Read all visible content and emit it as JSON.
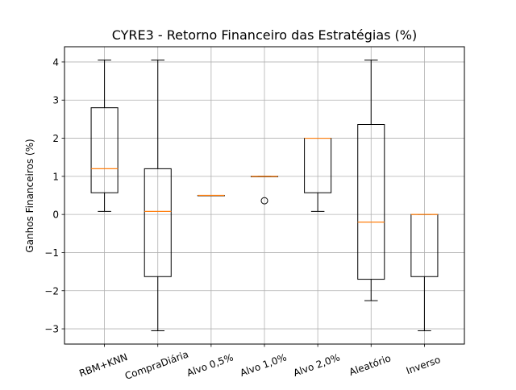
{
  "chart_data": {
    "type": "boxplot",
    "title": "CYRE3 - Retorno Financeiro das Estratégias (%)",
    "xlabel": "",
    "ylabel": "Ganhos Financeiros (%)",
    "ylim": [
      -3.4,
      4.4
    ],
    "yticks": [
      -3,
      -2,
      -1,
      0,
      1,
      2,
      3,
      4
    ],
    "ytick_labels": [
      "−3",
      "−2",
      "−1",
      "0",
      "1",
      "2",
      "3",
      "4"
    ],
    "grid": true,
    "categories": [
      "RBM+KNN",
      "CompraDiária",
      "Alvo 0,5%",
      "Alvo 1,0%",
      "Alvo 2,0%",
      "Aleatório",
      "Inverso"
    ],
    "boxes": [
      {
        "whislo": 0.08,
        "q1": 0.57,
        "med": 1.2,
        "q3": 2.8,
        "whishi": 4.05,
        "fliers": []
      },
      {
        "whislo": -3.05,
        "q1": -1.63,
        "med": 0.08,
        "q3": 1.2,
        "whishi": 4.05,
        "fliers": []
      },
      {
        "whislo": 0.5,
        "q1": 0.5,
        "med": 0.5,
        "q3": 0.5,
        "whishi": 0.5,
        "fliers": []
      },
      {
        "whislo": 1.0,
        "q1": 1.0,
        "med": 1.0,
        "q3": 1.0,
        "whishi": 1.0,
        "fliers": [
          0.36
        ]
      },
      {
        "whislo": 0.08,
        "q1": 0.57,
        "med": 2.0,
        "q3": 2.0,
        "whishi": 2.0,
        "fliers": []
      },
      {
        "whislo": -2.26,
        "q1": -1.7,
        "med": -0.2,
        "q3": 2.36,
        "whishi": 4.05,
        "fliers": []
      },
      {
        "whislo": -3.05,
        "q1": -1.63,
        "med": 0.0,
        "q3": 0.0,
        "whishi": 0.0,
        "fliers": []
      }
    ],
    "colors": {
      "box": "#000000",
      "median": "#ff7f0e",
      "grid": "#b0b0b0"
    }
  }
}
